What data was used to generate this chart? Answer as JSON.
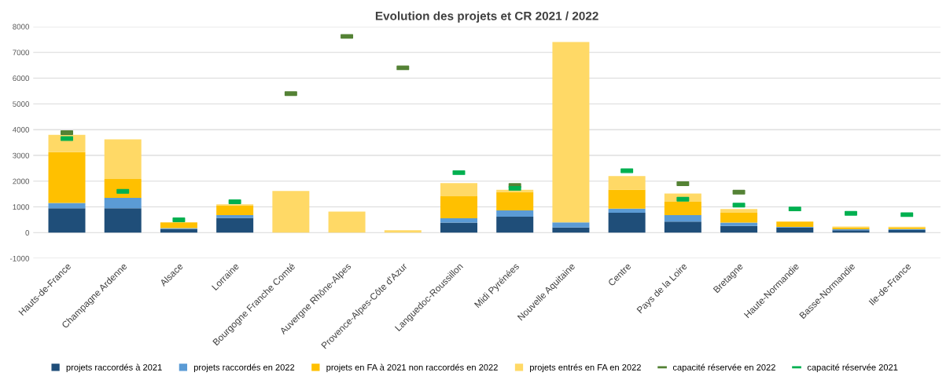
{
  "chart_data": {
    "type": "bar",
    "stacked": true,
    "title": "Evolution des projets et CR 2021 / 2022",
    "categories": [
      "Hauts-de-France",
      "Champagne Ardenne",
      "Alsace",
      "Lorraine",
      "Bourgogne Franche Comté",
      "Auvergne Rhône-Alpes",
      "Provence-Alpes-Côte d'Azur",
      "Languedoc-Roussillon",
      "Midi Pyrénées",
      "Nouvelle Aquitaine",
      "Centre",
      "Pays de la Loire",
      "Bretagne",
      "Haute-Normandie",
      "Basse-Normandie",
      "Ile-de-France"
    ],
    "series": [
      {
        "name": "projets raccordés à 2021",
        "color": "#1f4e79",
        "values": [
          950,
          950,
          150,
          570,
          0,
          0,
          0,
          390,
          620,
          200,
          770,
          430,
          260,
          200,
          90,
          100
        ]
      },
      {
        "name": "projets raccordés en 2022",
        "color": "#5b9bd5",
        "values": [
          200,
          400,
          30,
          110,
          0,
          0,
          0,
          170,
          240,
          200,
          160,
          250,
          130,
          20,
          40,
          40
        ]
      },
      {
        "name": "projets en FA à 2021 non raccordés en 2022",
        "color": "#ffc000",
        "values": [
          1980,
          730,
          220,
          370,
          0,
          0,
          0,
          850,
          720,
          0,
          740,
          520,
          380,
          210,
          70,
          60
        ]
      },
      {
        "name": "projets entrés en FA en 2022",
        "color": "#ffd966",
        "values": [
          670,
          1540,
          0,
          50,
          1620,
          820,
          90,
          510,
          80,
          7000,
          530,
          320,
          150,
          0,
          40,
          30
        ]
      },
      {
        "name": "capacité réservée en 2022",
        "color": "#548235",
        "type": "scatter",
        "values": [
          3880,
          null,
          null,
          null,
          5400,
          7620,
          6400,
          null,
          1830,
          null,
          null,
          1900,
          1570,
          null,
          null,
          null
        ]
      },
      {
        "name": "capacité réservée 2021",
        "color": "#00b050",
        "type": "scatter",
        "values": [
          3650,
          1600,
          500,
          1200,
          null,
          null,
          null,
          2330,
          1720,
          null,
          2400,
          1300,
          1070,
          920,
          750,
          700
        ]
      }
    ],
    "ylim": [
      -1000,
      8000
    ],
    "yticks": [
      -1000,
      0,
      1000,
      2000,
      3000,
      4000,
      5000,
      6000,
      7000,
      8000
    ],
    "grid": "y",
    "legend": "bottom"
  }
}
